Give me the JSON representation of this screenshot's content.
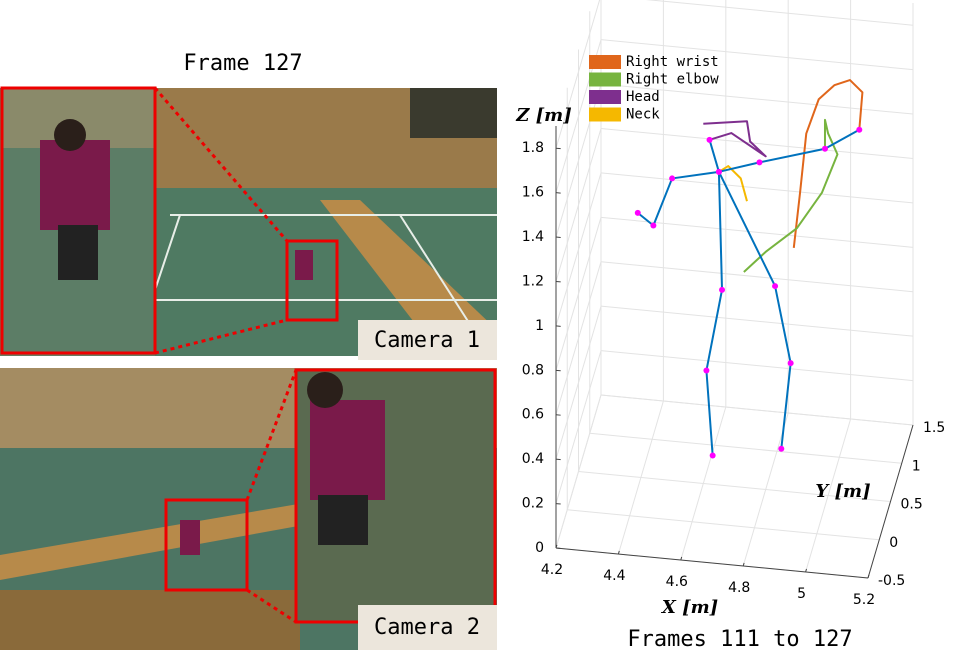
{
  "left_panel": {
    "title": "Frame 127",
    "cameras": [
      "Camera 1",
      "Camera 2"
    ]
  },
  "chart_data": {
    "type": "line3d",
    "title": "Frames 111 to 127",
    "xlabel": "X [m]",
    "ylabel": "Y [m]",
    "zlabel": "Z [m]",
    "xlim": [
      4.2,
      5.2
    ],
    "ylim": [
      -0.5,
      1.5
    ],
    "zlim": [
      0,
      1.9
    ],
    "xticks": [
      4.2,
      4.4,
      4.6,
      4.8,
      5,
      5.2
    ],
    "yticks": [
      -0.5,
      0,
      0.5,
      1,
      1.5
    ],
    "zticks": [
      0,
      0.2,
      0.4,
      0.6,
      0.8,
      1,
      1.2,
      1.4,
      1.6,
      1.8
    ],
    "grid": true,
    "series": [
      {
        "name": "Right wrist",
        "color": "#e0661b",
        "x": [
          4.89,
          4.91,
          4.93,
          4.97,
          5.02,
          5.07,
          5.11,
          5.1
        ],
        "y": [
          0.5,
          0.5,
          0.5,
          0.5,
          0.5,
          0.5,
          0.5,
          0.5
        ],
        "z": [
          1.1,
          1.35,
          1.62,
          1.78,
          1.85,
          1.88,
          1.83,
          1.66
        ]
      },
      {
        "name": "Right elbow",
        "color": "#77b43f",
        "x": [
          4.73,
          4.8,
          4.9,
          4.98,
          5.03,
          5.0,
          4.99,
          4.99
        ],
        "y": [
          0.5,
          0.5,
          0.5,
          0.5,
          0.5,
          0.5,
          0.5,
          0.5
        ],
        "z": [
          0.97,
          1.07,
          1.19,
          1.36,
          1.54,
          1.63,
          1.69,
          1.56
        ]
      },
      {
        "name": "Head",
        "color": "#7e2f8e",
        "x": [
          4.6,
          4.74,
          4.75,
          4.8,
          4.69,
          4.62
        ],
        "y": [
          0.5,
          0.5,
          0.5,
          0.5,
          0.5,
          0.5
        ],
        "z": [
          1.62,
          1.65,
          1.56,
          1.5,
          1.59,
          1.55
        ]
      },
      {
        "name": "Neck",
        "color": "#f5b800",
        "x": [
          4.65,
          4.68,
          4.72,
          4.74
        ],
        "y": [
          0.5,
          0.5,
          0.5,
          0.5
        ],
        "z": [
          1.41,
          1.44,
          1.39,
          1.29
        ]
      }
    ],
    "skeleton_color": "#0072bd",
    "joint_color": "#ff00ff",
    "skeleton": [
      {
        "x": [
          4.39,
          4.44,
          4.5,
          4.65,
          4.78,
          4.99,
          5.1
        ],
        "y": [
          0.5,
          0.5,
          0.5,
          0.5,
          0.5,
          0.5,
          0.5
        ],
        "z": [
          1.19,
          1.14,
          1.36,
          1.41,
          1.47,
          1.56,
          1.66
        ]
      },
      {
        "x": [
          4.62,
          4.65
        ],
        "y": [
          0.5,
          0.5
        ],
        "z": [
          1.55,
          1.41
        ]
      },
      {
        "x": [
          4.65,
          4.66,
          4.61,
          4.63
        ],
        "y": [
          0.5,
          0.5,
          0.5,
          0.5
        ],
        "z": [
          1.41,
          0.88,
          0.51,
          0.13
        ]
      },
      {
        "x": [
          4.65,
          4.83,
          4.88,
          4.85
        ],
        "y": [
          0.5,
          0.5,
          0.5,
          0.5
        ],
        "z": [
          1.41,
          0.92,
          0.58,
          0.19
        ]
      }
    ]
  }
}
